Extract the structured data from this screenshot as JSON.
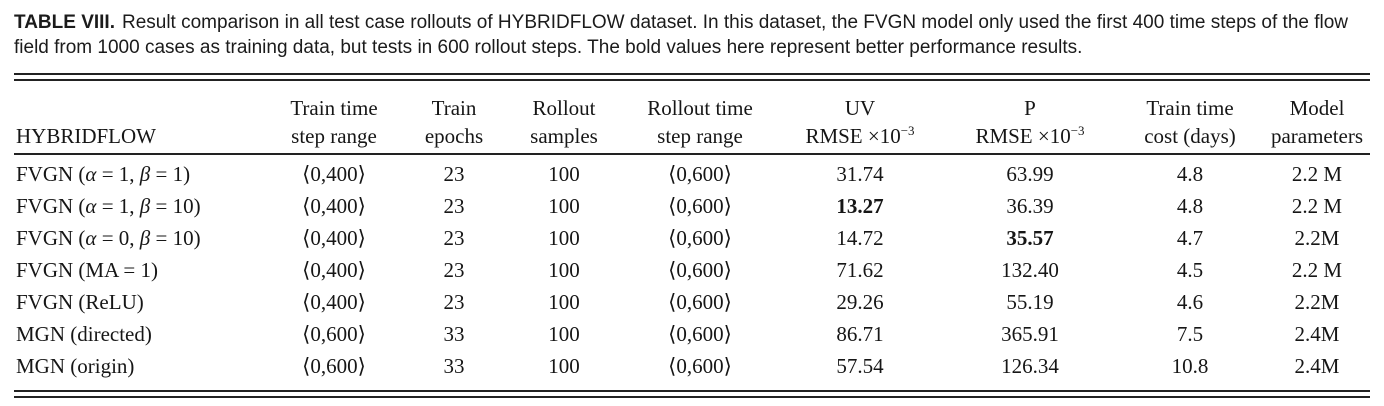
{
  "caption": {
    "label": "TABLE VIII.",
    "text": "Result comparison in all test case rollouts of HYBRIDFLOW dataset. In this dataset, the FVGN model only used the first 400 time steps of the flow field from 1000 cases as training data, but tests in 600 rollout steps. The bold values here represent better performance results."
  },
  "table": {
    "columns": [
      {
        "key": "hybridflow",
        "line1": "",
        "line2": "HYBRIDFLOW"
      },
      {
        "key": "train-time-step-range",
        "line1": "Train time",
        "line2": "step range"
      },
      {
        "key": "train-epochs",
        "line1": "Train",
        "line2": "epochs"
      },
      {
        "key": "rollout-samples",
        "line1": "Rollout",
        "line2": "samples"
      },
      {
        "key": "rollout-time-step-range",
        "line1": "Rollout time",
        "line2": "step range"
      },
      {
        "key": "uv-rmse",
        "line1": "UV",
        "line2": "RMSE ×10",
        "line2_sup": "−3"
      },
      {
        "key": "p-rmse",
        "line1": "P",
        "line2": "RMSE ×10",
        "line2_sup": "−3"
      },
      {
        "key": "train-time-cost",
        "line1": "Train time",
        "line2": "cost (days)"
      },
      {
        "key": "model-parameters",
        "line1": "Model",
        "line2": "parameters"
      }
    ],
    "rows": [
      [
        "FVGN (α = 1, β = 1)",
        "⟨0,400⟩",
        "23",
        "100",
        "⟨0,600⟩",
        "31.74",
        "63.99",
        "4.8",
        "2.2 M"
      ],
      [
        "FVGN (α = 1, β = 10)",
        "⟨0,400⟩",
        "23",
        "100",
        "⟨0,600⟩",
        {
          "text": "13.27",
          "bold": true
        },
        "36.39",
        "4.8",
        "2.2 M"
      ],
      [
        "FVGN (α = 0, β = 10)",
        "⟨0,400⟩",
        "23",
        "100",
        "⟨0,600⟩",
        "14.72",
        {
          "text": "35.57",
          "bold": true
        },
        "4.7",
        "2.2M"
      ],
      [
        "FVGN (MA = 1)",
        "⟨0,400⟩",
        "23",
        "100",
        "⟨0,600⟩",
        "71.62",
        "132.40",
        "4.5",
        "2.2 M"
      ],
      [
        "FVGN (ReLU)",
        "⟨0,400⟩",
        "23",
        "100",
        "⟨0,600⟩",
        "29.26",
        "55.19",
        "4.6",
        "2.2M"
      ],
      [
        "MGN (directed)",
        "⟨0,600⟩",
        "33",
        "100",
        "⟨0,600⟩",
        "86.71",
        "365.91",
        "7.5",
        "2.4M"
      ],
      [
        "MGN (origin)",
        "⟨0,600⟩",
        "33",
        "100",
        "⟨0,600⟩",
        "57.54",
        "126.34",
        "10.8",
        "2.4M"
      ]
    ]
  },
  "colors": {
    "text": "#161616",
    "rule": "#222222",
    "background": "#ffffff"
  }
}
